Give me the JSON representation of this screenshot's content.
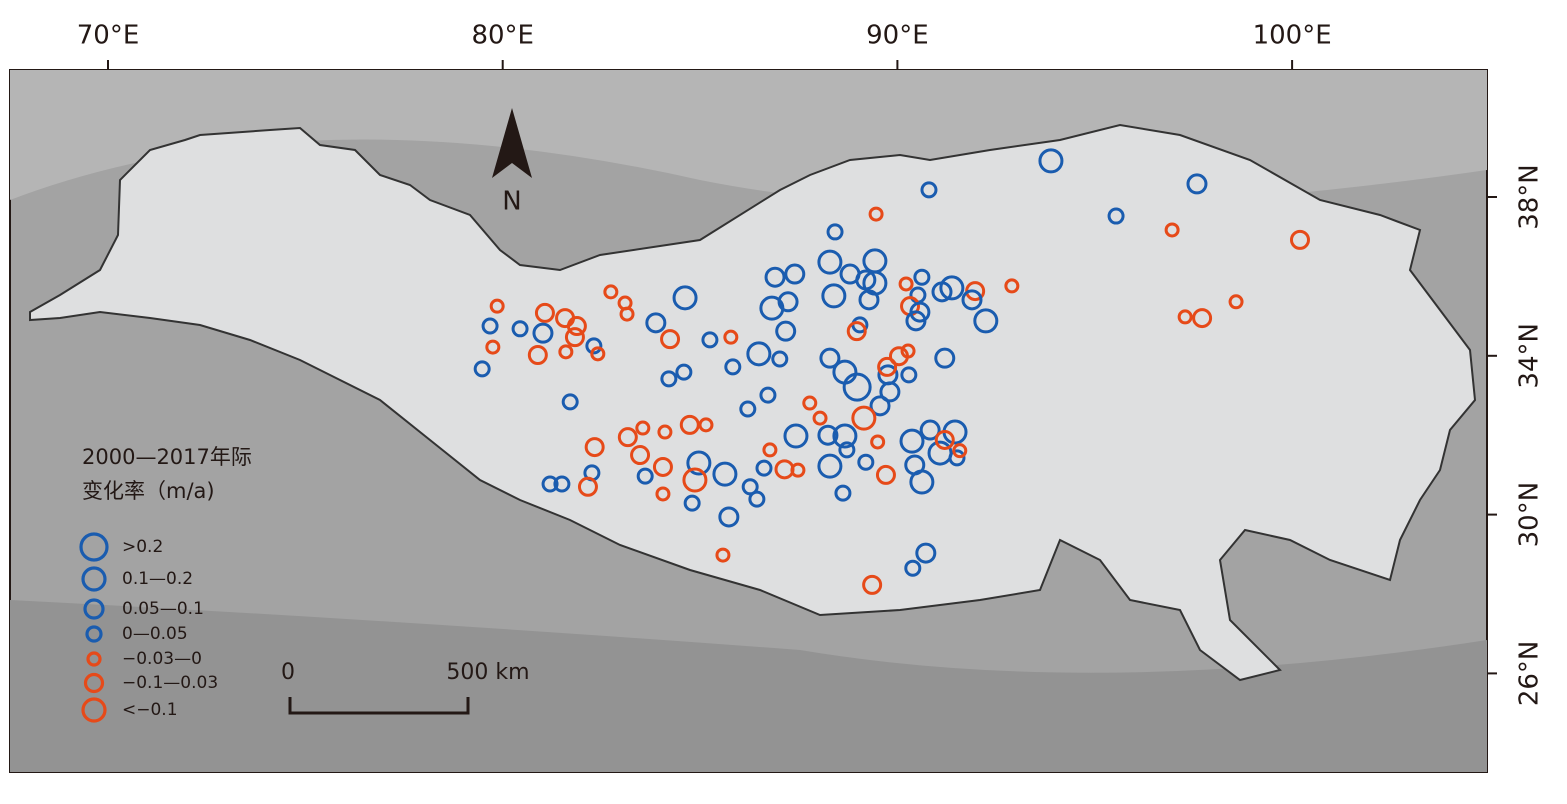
{
  "map": {
    "lon_ticks": [
      {
        "value": 70,
        "label": "70°E"
      },
      {
        "value": 80,
        "label": "80°E"
      },
      {
        "value": 90,
        "label": "90°E"
      },
      {
        "value": 100,
        "label": "100°E"
      }
    ],
    "lat_ticks": [
      {
        "value": 38,
        "label": "38°N"
      },
      {
        "value": 34,
        "label": "34°N"
      },
      {
        "value": 30,
        "label": "30°N"
      },
      {
        "value": 26,
        "label": "26°N"
      }
    ],
    "north_label": "N",
    "legend": {
      "title": [
        "2000—2017年际",
        "变化率（m/a)"
      ],
      "classes": [
        {
          "label": ">0.2",
          "color": "#1a5caf"
        },
        {
          "label": "0.1—0.2",
          "color": "#1a5caf"
        },
        {
          "label": "0.05—0.1",
          "color": "#1a5caf"
        },
        {
          "label": "0—0.05",
          "color": "#1a5caf"
        },
        {
          "label": "−0.03—0",
          "color": "#e64a19"
        },
        {
          "label": "−0.1—0.03",
          "color": "#e64a19"
        },
        {
          "label": "<−0.1",
          "color": "#e64a19"
        }
      ]
    },
    "scale_bar": {
      "labels": [
        "0",
        "500 km"
      ]
    },
    "lakes": [
      {
        "lon": 93.89,
        "lat": 38.91,
        "class": 1
      },
      {
        "lon": 90.8,
        "lat": 38.18,
        "class": 3
      },
      {
        "lon": 97.59,
        "lat": 38.33,
        "class": 2
      },
      {
        "lon": 95.54,
        "lat": 37.52,
        "class": 3
      },
      {
        "lon": 96.96,
        "lat": 37.17,
        "class": 4
      },
      {
        "lon": 100.2,
        "lat": 36.92,
        "class": 5
      },
      {
        "lon": 89.46,
        "lat": 37.57,
        "class": 4
      },
      {
        "lon": 88.42,
        "lat": 37.12,
        "class": 3
      },
      {
        "lon": 92.9,
        "lat": 35.76,
        "class": 4
      },
      {
        "lon": 98.58,
        "lat": 35.36,
        "class": 4
      },
      {
        "lon": 97.29,
        "lat": 34.98,
        "class": 4
      },
      {
        "lon": 97.72,
        "lat": 34.95,
        "class": 5
      },
      {
        "lon": 84.62,
        "lat": 35.46,
        "class": 1
      },
      {
        "lon": 83.88,
        "lat": 34.83,
        "class": 2
      },
      {
        "lon": 84.24,
        "lat": 34.42,
        "class": 5
      },
      {
        "lon": 79.86,
        "lat": 35.25,
        "class": 4
      },
      {
        "lon": 79.68,
        "lat": 34.75,
        "class": 3
      },
      {
        "lon": 80.44,
        "lat": 34.68,
        "class": 3
      },
      {
        "lon": 81.07,
        "lat": 35.08,
        "class": 5
      },
      {
        "lon": 81.02,
        "lat": 34.57,
        "class": 2
      },
      {
        "lon": 81.58,
        "lat": 34.95,
        "class": 5
      },
      {
        "lon": 81.88,
        "lat": 34.75,
        "class": 5
      },
      {
        "lon": 81.83,
        "lat": 34.47,
        "class": 5
      },
      {
        "lon": 79.75,
        "lat": 34.22,
        "class": 4
      },
      {
        "lon": 80.89,
        "lat": 34.02,
        "class": 5
      },
      {
        "lon": 81.6,
        "lat": 34.1,
        "class": 4
      },
      {
        "lon": 82.31,
        "lat": 34.25,
        "class": 3
      },
      {
        "lon": 82.41,
        "lat": 34.05,
        "class": 4
      },
      {
        "lon": 79.48,
        "lat": 33.67,
        "class": 3
      },
      {
        "lon": 82.74,
        "lat": 35.61,
        "class": 4
      },
      {
        "lon": 83.1,
        "lat": 35.33,
        "class": 4
      },
      {
        "lon": 83.15,
        "lat": 35.05,
        "class": 4
      },
      {
        "lon": 85.25,
        "lat": 34.4,
        "class": 3
      },
      {
        "lon": 85.78,
        "lat": 34.47,
        "class": 4
      },
      {
        "lon": 86.49,
        "lat": 34.05,
        "class": 1
      },
      {
        "lon": 87.02,
        "lat": 33.92,
        "class": 3
      },
      {
        "lon": 85.83,
        "lat": 33.72,
        "class": 3
      },
      {
        "lon": 84.59,
        "lat": 33.59,
        "class": 3
      },
      {
        "lon": 84.21,
        "lat": 33.42,
        "class": 3
      },
      {
        "lon": 81.71,
        "lat": 32.84,
        "class": 3
      },
      {
        "lon": 86.72,
        "lat": 33.01,
        "class": 3
      },
      {
        "lon": 86.21,
        "lat": 32.66,
        "class": 3
      },
      {
        "lon": 86.82,
        "lat": 35.2,
        "class": 1
      },
      {
        "lon": 87.17,
        "lat": 34.62,
        "class": 2
      },
      {
        "lon": 86.9,
        "lat": 35.98,
        "class": 2
      },
      {
        "lon": 87.4,
        "lat": 36.06,
        "class": 2
      },
      {
        "lon": 87.23,
        "lat": 35.36,
        "class": 2
      },
      {
        "lon": 88.29,
        "lat": 36.36,
        "class": 1
      },
      {
        "lon": 89.43,
        "lat": 36.39,
        "class": 1
      },
      {
        "lon": 88.8,
        "lat": 36.06,
        "class": 2
      },
      {
        "lon": 88.39,
        "lat": 35.51,
        "class": 1
      },
      {
        "lon": 89.2,
        "lat": 35.91,
        "class": 2
      },
      {
        "lon": 89.28,
        "lat": 35.41,
        "class": 2
      },
      {
        "lon": 89.43,
        "lat": 35.83,
        "class": 1
      },
      {
        "lon": 90.62,
        "lat": 35.98,
        "class": 3
      },
      {
        "lon": 90.22,
        "lat": 35.81,
        "class": 4
      },
      {
        "lon": 90.52,
        "lat": 35.53,
        "class": 3
      },
      {
        "lon": 90.32,
        "lat": 35.25,
        "class": 5
      },
      {
        "lon": 90.57,
        "lat": 35.1,
        "class": 2
      },
      {
        "lon": 90.47,
        "lat": 34.88,
        "class": 2
      },
      {
        "lon": 91.38,
        "lat": 35.71,
        "class": 1
      },
      {
        "lon": 91.13,
        "lat": 35.61,
        "class": 2
      },
      {
        "lon": 91.97,
        "lat": 35.63,
        "class": 5
      },
      {
        "lon": 91.89,
        "lat": 35.41,
        "class": 2
      },
      {
        "lon": 92.24,
        "lat": 34.88,
        "class": 1
      },
      {
        "lon": 89.05,
        "lat": 34.78,
        "class": 3
      },
      {
        "lon": 88.97,
        "lat": 34.62,
        "class": 5
      },
      {
        "lon": 91.2,
        "lat": 33.94,
        "class": 2
      },
      {
        "lon": 88.29,
        "lat": 33.94,
        "class": 2
      },
      {
        "lon": 88.67,
        "lat": 33.59,
        "class": 1
      },
      {
        "lon": 88.98,
        "lat": 33.21,
        "class": 0
      },
      {
        "lon": 89.81,
        "lat": 33.09,
        "class": 2
      },
      {
        "lon": 89.56,
        "lat": 32.74,
        "class": 2
      },
      {
        "lon": 89.76,
        "lat": 33.52,
        "class": 2
      },
      {
        "lon": 90.29,
        "lat": 33.52,
        "class": 3
      },
      {
        "lon": 90.04,
        "lat": 33.99,
        "class": 5
      },
      {
        "lon": 90.27,
        "lat": 34.12,
        "class": 4
      },
      {
        "lon": 89.74,
        "lat": 33.72,
        "class": 5
      },
      {
        "lon": 89.15,
        "lat": 32.43,
        "class": 6
      },
      {
        "lon": 87.78,
        "lat": 32.81,
        "class": 4
      },
      {
        "lon": 88.04,
        "lat": 32.43,
        "class": 4
      },
      {
        "lon": 87.43,
        "lat": 31.98,
        "class": 1
      },
      {
        "lon": 88.24,
        "lat": 32.0,
        "class": 2
      },
      {
        "lon": 88.67,
        "lat": 31.98,
        "class": 1
      },
      {
        "lon": 88.29,
        "lat": 31.22,
        "class": 1
      },
      {
        "lon": 88.72,
        "lat": 31.63,
        "class": 3
      },
      {
        "lon": 89.2,
        "lat": 31.32,
        "class": 3
      },
      {
        "lon": 89.5,
        "lat": 31.83,
        "class": 4
      },
      {
        "lon": 90.37,
        "lat": 31.85,
        "class": 1
      },
      {
        "lon": 90.83,
        "lat": 32.13,
        "class": 2
      },
      {
        "lon": 91.46,
        "lat": 32.08,
        "class": 1
      },
      {
        "lon": 91.08,
        "lat": 31.55,
        "class": 1
      },
      {
        "lon": 90.62,
        "lat": 30.82,
        "class": 1
      },
      {
        "lon": 90.44,
        "lat": 31.25,
        "class": 2
      },
      {
        "lon": 91.51,
        "lat": 31.43,
        "class": 3
      },
      {
        "lon": 91.58,
        "lat": 31.61,
        "class": 4
      },
      {
        "lon": 91.2,
        "lat": 31.88,
        "class": 5
      },
      {
        "lon": 82.33,
        "lat": 31.7,
        "class": 5
      },
      {
        "lon": 83.17,
        "lat": 31.95,
        "class": 5
      },
      {
        "lon": 83.55,
        "lat": 32.18,
        "class": 4
      },
      {
        "lon": 84.11,
        "lat": 32.08,
        "class": 4
      },
      {
        "lon": 84.74,
        "lat": 32.26,
        "class": 5
      },
      {
        "lon": 85.15,
        "lat": 32.26,
        "class": 4
      },
      {
        "lon": 83.48,
        "lat": 31.5,
        "class": 5
      },
      {
        "lon": 84.06,
        "lat": 31.2,
        "class": 5
      },
      {
        "lon": 82.26,
        "lat": 31.05,
        "class": 3
      },
      {
        "lon": 83.61,
        "lat": 30.97,
        "class": 3
      },
      {
        "lon": 84.97,
        "lat": 31.3,
        "class": 1
      },
      {
        "lon": 85.63,
        "lat": 31.02,
        "class": 1
      },
      {
        "lon": 84.87,
        "lat": 30.87,
        "class": 6
      },
      {
        "lon": 82.16,
        "lat": 30.7,
        "class": 5
      },
      {
        "lon": 81.2,
        "lat": 30.77,
        "class": 3
      },
      {
        "lon": 81.5,
        "lat": 30.77,
        "class": 3
      },
      {
        "lon": 84.06,
        "lat": 30.52,
        "class": 4
      },
      {
        "lon": 84.8,
        "lat": 30.29,
        "class": 3
      },
      {
        "lon": 86.27,
        "lat": 30.7,
        "class": 3
      },
      {
        "lon": 86.44,
        "lat": 30.39,
        "class": 3
      },
      {
        "lon": 86.62,
        "lat": 31.17,
        "class": 3
      },
      {
        "lon": 85.73,
        "lat": 29.94,
        "class": 2
      },
      {
        "lon": 87.14,
        "lat": 31.14,
        "class": 5
      },
      {
        "lon": 87.48,
        "lat": 31.12,
        "class": 4
      },
      {
        "lon": 88.62,
        "lat": 30.54,
        "class": 3
      },
      {
        "lon": 89.71,
        "lat": 31.0,
        "class": 5
      },
      {
        "lon": 85.58,
        "lat": 28.98,
        "class": 4
      },
      {
        "lon": 90.72,
        "lat": 29.03,
        "class": 2
      },
      {
        "lon": 90.39,
        "lat": 28.65,
        "class": 3
      },
      {
        "lon": 89.36,
        "lat": 28.23,
        "class": 5
      },
      {
        "lon": 86.77,
        "lat": 31.63,
        "class": 4
      }
    ]
  }
}
